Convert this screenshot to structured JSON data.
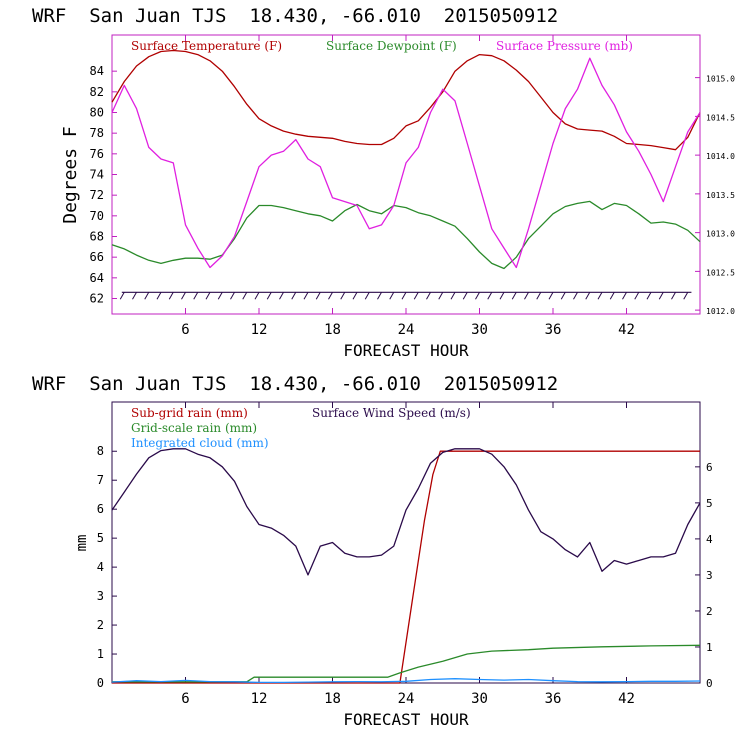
{
  "chart_data": [
    {
      "type": "line",
      "title": "WRF  San Juan TJS  18.430, -66.010  2015050912",
      "xlabel": "FORECAST HOUR",
      "ylabel": "Degrees F",
      "xlim": [
        0,
        48
      ],
      "ylim": [
        60.5,
        87.5
      ],
      "y2lim": [
        1011.95,
        1015.55
      ],
      "xticks": [
        6,
        12,
        18,
        24,
        30,
        36,
        42
      ],
      "yticks": [
        62,
        64,
        66,
        68,
        70,
        72,
        74,
        76,
        78,
        80,
        82,
        84
      ],
      "y2ticks": [
        "1012.0",
        "1012.5",
        "1013.0",
        "1013.5",
        "1014.0",
        "1014.5",
        "1015.0"
      ],
      "legend_placement": "top",
      "series": [
        {
          "name": "Surface Temperature (F)",
          "color": "#b00000",
          "axis": "left",
          "x": [
            0,
            1,
            2,
            3,
            4,
            5,
            6,
            7,
            8,
            9,
            10,
            11,
            12,
            13,
            14,
            15,
            16,
            17,
            18,
            19,
            20,
            21,
            22,
            23,
            24,
            25,
            26,
            27,
            28,
            29,
            30,
            31,
            32,
            33,
            34,
            35,
            36,
            37,
            38,
            39,
            40,
            41,
            42,
            43,
            44,
            45,
            46,
            47,
            48
          ],
          "y": [
            81.0,
            83.0,
            84.5,
            85.4,
            85.9,
            86.0,
            85.9,
            85.6,
            85.0,
            84.0,
            82.5,
            80.8,
            79.4,
            78.7,
            78.2,
            77.9,
            77.7,
            77.6,
            77.5,
            77.2,
            77.0,
            76.9,
            76.9,
            77.5,
            78.7,
            79.2,
            80.5,
            82.0,
            84.0,
            85.0,
            85.6,
            85.5,
            85.0,
            84.1,
            83.0,
            81.5,
            80.0,
            78.9,
            78.4,
            78.3,
            78.2,
            77.7,
            77.0,
            76.9,
            76.8,
            76.6,
            76.4,
            77.6,
            80.0
          ]
        },
        {
          "name": "Surface Dewpoint (F)",
          "color": "#2a8a2a",
          "axis": "left",
          "x": [
            0,
            1,
            2,
            3,
            4,
            5,
            6,
            7,
            8,
            9,
            10,
            11,
            12,
            13,
            14,
            15,
            16,
            17,
            18,
            19,
            20,
            21,
            22,
            23,
            24,
            25,
            26,
            27,
            28,
            29,
            30,
            31,
            32,
            33,
            34,
            35,
            36,
            37,
            38,
            39,
            40,
            41,
            42,
            43,
            44,
            45,
            46,
            47,
            48
          ],
          "y": [
            67.2,
            66.8,
            66.2,
            65.7,
            65.4,
            65.7,
            65.9,
            65.9,
            65.8,
            66.2,
            67.8,
            69.8,
            71.0,
            71.0,
            70.8,
            70.5,
            70.2,
            70.0,
            69.5,
            70.5,
            71.1,
            70.5,
            70.2,
            71.0,
            70.8,
            70.3,
            70.0,
            69.5,
            69.0,
            67.8,
            66.5,
            65.4,
            64.9,
            66.0,
            67.8,
            69.0,
            70.2,
            70.9,
            71.2,
            71.4,
            70.6,
            71.2,
            71.0,
            70.2,
            69.3,
            69.4,
            69.2,
            68.6,
            67.5
          ]
        },
        {
          "name": "Surface Pressure (mb)",
          "color": "#e020e0",
          "axis": "right",
          "x": [
            0,
            1,
            2,
            3,
            4,
            5,
            6,
            7,
            8,
            9,
            10,
            11,
            12,
            13,
            14,
            15,
            16,
            17,
            18,
            19,
            20,
            21,
            22,
            23,
            24,
            25,
            26,
            27,
            28,
            29,
            30,
            31,
            32,
            33,
            34,
            35,
            36,
            37,
            38,
            39,
            40,
            41,
            42,
            43,
            44,
            45,
            46,
            47,
            48
          ],
          "y": [
            1014.55,
            1014.9,
            1014.6,
            1014.1,
            1013.95,
            1013.9,
            1013.1,
            1012.8,
            1012.55,
            1012.7,
            1012.95,
            1013.4,
            1013.85,
            1014.0,
            1014.05,
            1014.2,
            1013.95,
            1013.85,
            1013.45,
            1013.4,
            1013.35,
            1013.05,
            1013.1,
            1013.35,
            1013.9,
            1014.1,
            1014.55,
            1014.85,
            1014.7,
            1014.15,
            1013.6,
            1013.05,
            1012.8,
            1012.55,
            1013.05,
            1013.6,
            1014.15,
            1014.6,
            1014.85,
            1015.25,
            1014.9,
            1014.65,
            1014.3,
            1014.05,
            1013.75,
            1013.4,
            1013.85,
            1014.3,
            1014.55
          ]
        }
      ],
      "wind_barbs": {
        "hours": [
          1,
          2,
          3,
          4,
          5,
          6,
          7,
          8,
          9,
          10,
          11,
          12,
          13,
          14,
          15,
          16,
          17,
          18,
          19,
          20,
          21,
          22,
          23,
          24,
          25,
          26,
          27,
          28,
          29,
          30,
          31,
          32,
          33,
          34,
          35,
          36,
          37,
          38,
          39,
          40,
          41,
          42,
          43,
          44,
          45,
          46,
          47
        ],
        "color": "#2a0a4a"
      }
    },
    {
      "type": "line",
      "title": "WRF  San Juan TJS  18.430, -66.010  2015050912",
      "xlabel": "FORECAST HOUR",
      "ylabel": "mm",
      "xlim": [
        0,
        48
      ],
      "ylim": [
        0,
        9.7
      ],
      "y2lim": [
        0,
        7.8
      ],
      "xticks": [
        6,
        12,
        18,
        24,
        30,
        36,
        42
      ],
      "yticks": [
        0,
        1,
        2,
        3,
        4,
        5,
        6,
        7,
        8
      ],
      "y2ticks": [
        0,
        1,
        2,
        3,
        4,
        5,
        6
      ],
      "legend_placement": "top-left",
      "series": [
        {
          "name": "Sub-grid rain (mm)",
          "color": "#b00000",
          "axis": "left",
          "x": [
            0,
            23.5,
            24.5,
            25.5,
            26.2,
            26.8,
            48
          ],
          "y": [
            0,
            0,
            2.8,
            5.6,
            7.2,
            8.0,
            8.0
          ]
        },
        {
          "name": "Grid-scale rain (mm)",
          "color": "#2a8a2a",
          "axis": "left",
          "x": [
            0,
            11,
            11.6,
            22.5,
            23.5,
            25,
            27,
            29,
            31,
            34,
            36,
            40,
            44,
            48
          ],
          "y": [
            0.04,
            0.04,
            0.2,
            0.2,
            0.35,
            0.55,
            0.75,
            1.0,
            1.1,
            1.15,
            1.2,
            1.25,
            1.28,
            1.3
          ]
        },
        {
          "name": "Integrated cloud (mm)",
          "color": "#1e90ff",
          "axis": "left",
          "x": [
            0,
            2,
            4,
            6,
            8,
            10,
            12,
            14,
            16,
            18,
            20,
            22,
            24,
            26,
            28,
            30,
            32,
            34,
            36,
            38,
            40,
            42,
            44,
            46,
            48
          ],
          "y": [
            0.03,
            0.08,
            0.05,
            0.09,
            0.05,
            0.04,
            0.02,
            0.02,
            0.03,
            0.04,
            0.05,
            0.04,
            0.06,
            0.12,
            0.15,
            0.12,
            0.1,
            0.12,
            0.08,
            0.05,
            0.04,
            0.05,
            0.06,
            0.06,
            0.07
          ]
        },
        {
          "name": "Surface Wind Speed (m/s)",
          "color": "#2a0a4a",
          "axis": "right",
          "x": [
            0,
            1,
            2,
            3,
            4,
            5,
            6,
            7,
            8,
            9,
            10,
            11,
            12,
            13,
            14,
            15,
            16,
            17,
            18,
            19,
            20,
            21,
            22,
            23,
            24,
            25,
            26,
            27,
            28,
            29,
            30,
            31,
            32,
            33,
            34,
            35,
            36,
            37,
            38,
            39,
            40,
            41,
            42,
            43,
            44,
            45,
            46,
            47,
            48
          ],
          "y": [
            4.8,
            5.3,
            5.8,
            6.25,
            6.45,
            6.5,
            6.5,
            6.35,
            6.25,
            6.0,
            5.6,
            4.9,
            4.4,
            4.3,
            4.1,
            3.8,
            3.0,
            3.8,
            3.9,
            3.6,
            3.5,
            3.5,
            3.55,
            3.8,
            4.8,
            5.4,
            6.1,
            6.4,
            6.5,
            6.5,
            6.5,
            6.35,
            6.0,
            5.5,
            4.8,
            4.2,
            4.0,
            3.7,
            3.5,
            3.9,
            3.1,
            3.4,
            3.3,
            3.4,
            3.5,
            3.5,
            3.6,
            4.4,
            5.0
          ]
        }
      ]
    }
  ]
}
